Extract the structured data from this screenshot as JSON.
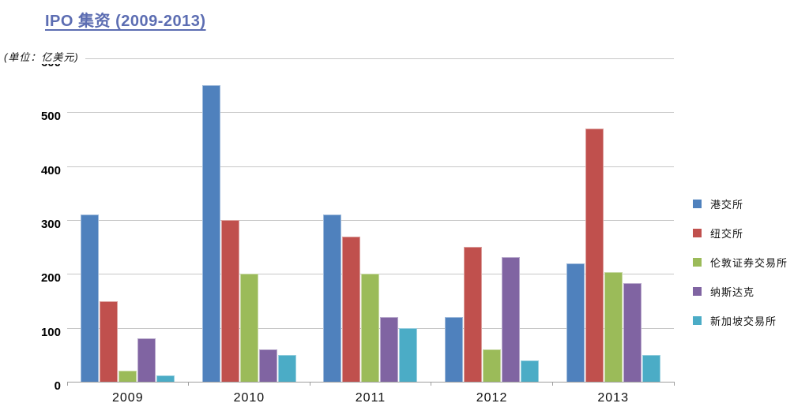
{
  "title": "IPO 集资 (2009-2013)",
  "unit_label": "(单位：亿美元)",
  "chart_data": {
    "type": "bar",
    "title": "IPO 集资 (2009-2013)",
    "ylabel": "亿美元",
    "xlabel": "",
    "categories": [
      "2009",
      "2010",
      "2011",
      "2012",
      "2013"
    ],
    "series": [
      {
        "name": "港交所",
        "color": "#4F81BD",
        "values": [
          310,
          550,
          310,
          120,
          220
        ]
      },
      {
        "name": "纽交所",
        "color": "#C0504D",
        "values": [
          150,
          300,
          270,
          250,
          470
        ]
      },
      {
        "name": "伦敦证券交易所",
        "color": "#9BBB59",
        "values": [
          20,
          200,
          200,
          60,
          203
        ]
      },
      {
        "name": "纳斯达克",
        "color": "#8064A2",
        "values": [
          80,
          60,
          120,
          232,
          183
        ]
      },
      {
        "name": "新加坡交易所",
        "color": "#4BACC6",
        "values": [
          12,
          50,
          100,
          40,
          50
        ]
      }
    ],
    "ylim": [
      0,
      600
    ],
    "ytick_interval": 100,
    "yticks": [
      "600",
      "500",
      "400",
      "300",
      "200",
      "100",
      "0"
    ],
    "grid": true,
    "legend_position": "right",
    "colors": {
      "title": "#5C6DB2",
      "gridline": "#c7c7c7",
      "axis": "#9e9e9e",
      "label": "#000000"
    }
  }
}
